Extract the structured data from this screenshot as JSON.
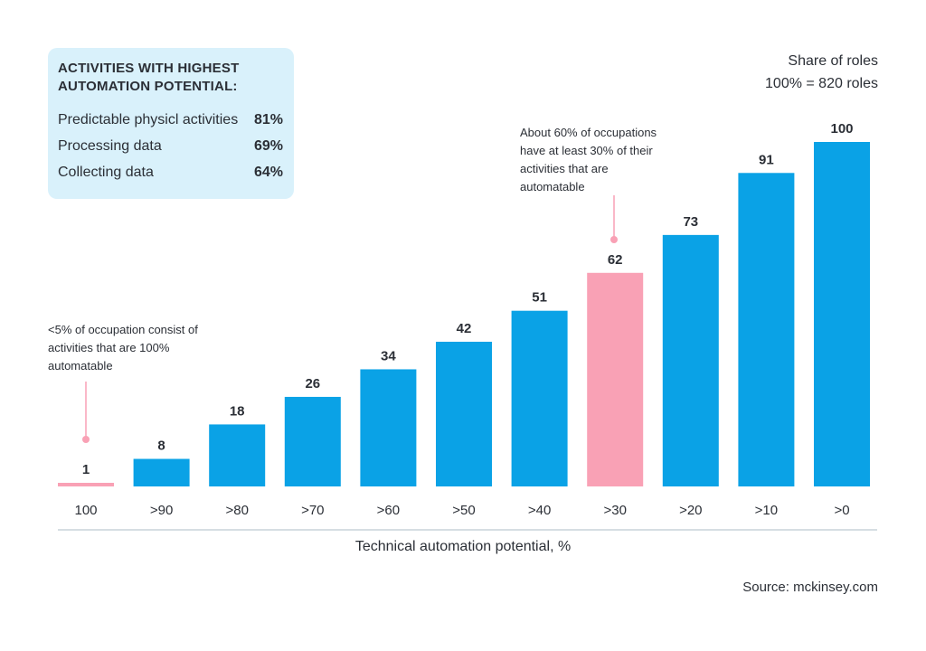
{
  "info_box": {
    "title": "ACTIVITIES WITH HIGHEST AUTOMATION POTENTIAL:",
    "rows": [
      {
        "label": "Predictable physicl activities",
        "value": "81%"
      },
      {
        "label": "Processing data",
        "value": "69%"
      },
      {
        "label": "Collecting data",
        "value": "64%"
      }
    ]
  },
  "share_note": {
    "line1": "Share of roles",
    "line2": "100% = 820 roles"
  },
  "annotations": {
    "left": "<5% of occupation consist of activities that are 100% automatable",
    "mid": "About 60% of occupations have at least 30% of their activities that are automatable"
  },
  "source": "Source: mckinsey.com",
  "colors": {
    "bar": "#0aa2e6",
    "highlight": "#f9a1b5",
    "text": "#2b2f36",
    "axis": "#c9d3da",
    "box": "#d9f1fb"
  },
  "chart_data": {
    "type": "bar",
    "categories": [
      "100",
      ">90",
      ">80",
      ">70",
      ">60",
      ">50",
      ">40",
      ">30",
      ">20",
      ">10",
      ">0"
    ],
    "values": [
      1,
      8,
      18,
      26,
      34,
      42,
      51,
      62,
      73,
      91,
      100
    ],
    "highlighted": [
      "100",
      ">30"
    ],
    "xlabel": "Technical automation potential, %",
    "ylabel": "",
    "ylim": [
      0,
      100
    ],
    "grid": false,
    "legend": "none"
  }
}
